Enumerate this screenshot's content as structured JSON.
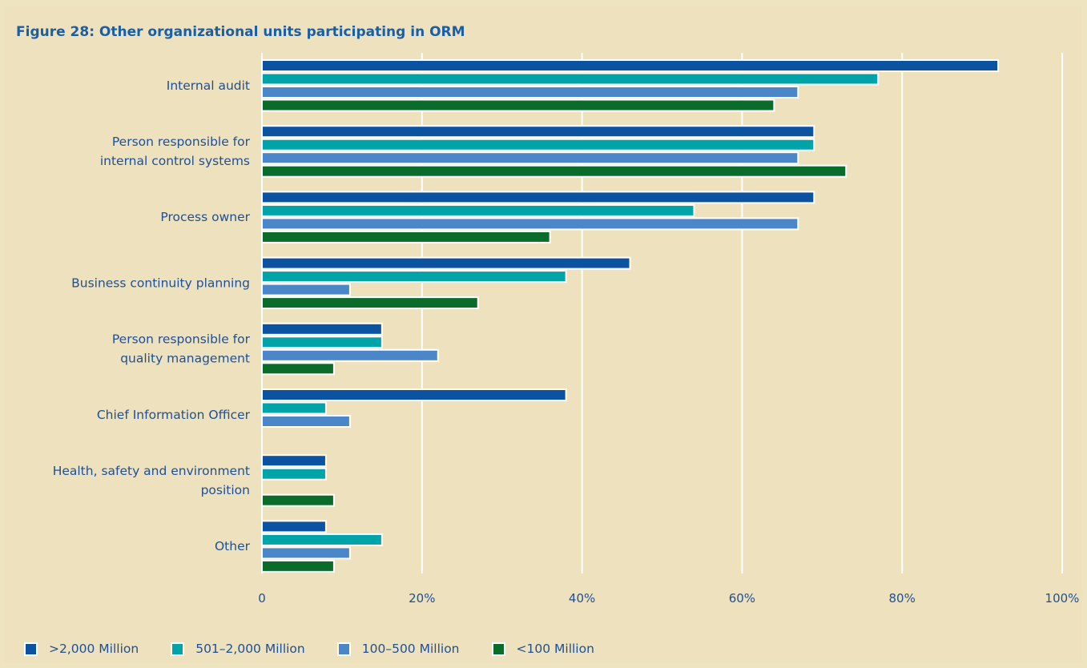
{
  "chart_data": {
    "type": "bar",
    "orientation": "horizontal",
    "title": "Figure 28: Other organizational units participating in ORM",
    "categories": [
      [
        "Internal audit"
      ],
      [
        "Person responsible for",
        "internal control systems"
      ],
      [
        "Process owner"
      ],
      [
        "Business continuity planning"
      ],
      [
        "Person responsible for",
        "quality management"
      ],
      [
        "Chief Information Officer"
      ],
      [
        "Health, safety and environment",
        "position"
      ],
      [
        "Other"
      ]
    ],
    "series": [
      {
        "name": ">2,000 Million",
        "color": "#0b52a0",
        "values": [
          92,
          69,
          69,
          46,
          15,
          38,
          8,
          8
        ]
      },
      {
        "name": "501–2,000 Million",
        "color": "#00a3a8",
        "values": [
          77,
          69,
          54,
          38,
          15,
          8,
          8,
          15
        ]
      },
      {
        "name": "100–500 Million",
        "color": "#4a86c8",
        "values": [
          67,
          67,
          67,
          11,
          22,
          11,
          0,
          11
        ]
      },
      {
        "name": "<100 Million",
        "color": "#0a6b2b",
        "values": [
          64,
          73,
          36,
          27,
          9,
          0,
          9,
          9
        ]
      }
    ],
    "xlim": [
      0,
      100
    ],
    "xticks": [
      0,
      20,
      40,
      60,
      80,
      100
    ],
    "xtick_labels": [
      "0",
      "20%",
      "40%",
      "60%",
      "80%",
      "100%"
    ],
    "grid": true,
    "legend_position": "bottom"
  }
}
